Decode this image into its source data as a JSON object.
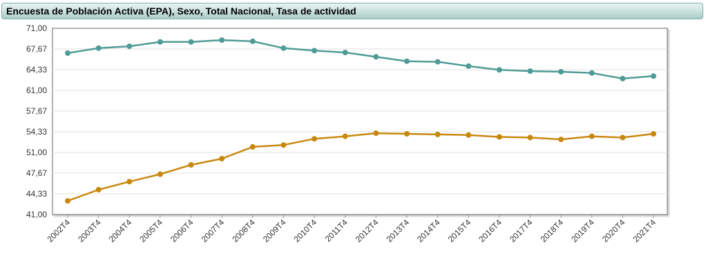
{
  "chart_data": {
    "type": "line",
    "title": "Encuesta de Población Activa (EPA), Sexo, Total Nacional, Tasa de actividad",
    "categories": [
      "2002T4",
      "2003T4",
      "2004T4",
      "2005T4",
      "2006T4",
      "2007T4",
      "2008T4",
      "2009T4",
      "2010T4",
      "2011T4",
      "2012T4",
      "2013T4",
      "2014T4",
      "2015T4",
      "2016T4",
      "2017T4",
      "2018T4",
      "2019T4",
      "2020T4",
      "2021T4"
    ],
    "yticks": [
      "71,00",
      "67,67",
      "64,33",
      "61,00",
      "57,67",
      "54,33",
      "51,00",
      "47,67",
      "44,33",
      "41,00"
    ],
    "ylim": [
      41.0,
      71.0
    ],
    "grid": true,
    "series": [
      {
        "color": "#4f9b95",
        "values": [
          67.0,
          67.8,
          68.1,
          68.8,
          68.8,
          69.1,
          68.9,
          67.8,
          67.4,
          67.1,
          66.4,
          65.7,
          65.6,
          64.9,
          64.3,
          64.1,
          64.0,
          63.8,
          62.9,
          63.3
        ]
      },
      {
        "color": "#c8880f",
        "values": [
          43.2,
          45.0,
          46.3,
          47.5,
          49.0,
          50.0,
          51.9,
          52.2,
          53.2,
          53.6,
          54.1,
          54.0,
          53.9,
          53.8,
          53.5,
          53.4,
          53.1,
          53.6,
          53.4,
          54.0
        ]
      }
    ]
  }
}
